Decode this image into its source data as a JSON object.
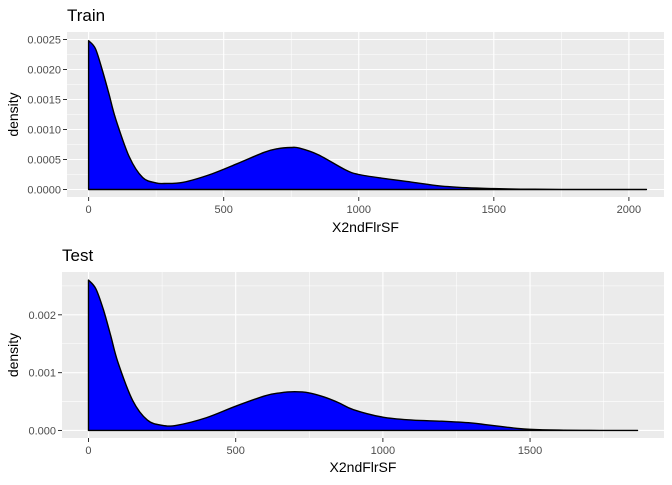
{
  "chart_data": [
    {
      "type": "area",
      "title": "Train",
      "xlabel": "X2ndFlrSF",
      "ylabel": "density",
      "xlim": [
        -80,
        2130
      ],
      "ylim": [
        -0.000125,
        0.002625
      ],
      "x_ticks": [
        0,
        500,
        1000,
        1500,
        2000
      ],
      "x_tick_labels": [
        "0",
        "500",
        "1000",
        "1500",
        "2000"
      ],
      "y_ticks": [
        0,
        0.0005,
        0.001,
        0.0015,
        0.002,
        0.0025
      ],
      "y_tick_labels": [
        "0.0000",
        "0.0005",
        "0.0010",
        "0.0015",
        "0.0020",
        "0.0025"
      ],
      "grid": true,
      "fill_color": "#0000ff",
      "line_color": "#000000",
      "panel_color": "#ebebeb",
      "series": [
        {
          "x": [
            0,
            25,
            50,
            75,
            100,
            150,
            200,
            250,
            280,
            350,
            450,
            550,
            650,
            700,
            750,
            780,
            850,
            950,
            1000,
            1100,
            1200,
            1300,
            1400,
            1500,
            1600,
            1700,
            1800,
            1900,
            2000,
            2065
          ],
          "y": [
            0.00248,
            0.00235,
            0.002,
            0.0016,
            0.00118,
            0.00055,
            0.0002,
            0.00011,
            0.0001,
            0.00012,
            0.00025,
            0.00043,
            0.00062,
            0.00068,
            0.0007,
            0.00069,
            0.00058,
            0.00033,
            0.00025,
            0.00018,
            0.00012,
            6e-05,
            3e-05,
            1.5e-05,
            6e-06,
            3e-06,
            1e-06,
            5e-07,
            2e-07,
            0
          ]
        }
      ]
    },
    {
      "type": "area",
      "title": "Test",
      "xlabel": "X2ndFlrSF",
      "ylabel": "density",
      "xlim": [
        -90,
        1955
      ],
      "ylim": [
        -0.00013,
        0.00274
      ],
      "x_ticks": [
        0,
        500,
        1000,
        1500
      ],
      "x_tick_labels": [
        "0",
        "500",
        "1000",
        "1500"
      ],
      "y_ticks": [
        0,
        0.001,
        0.002
      ],
      "y_tick_labels": [
        "0.000",
        "0.001",
        "0.002"
      ],
      "grid": true,
      "fill_color": "#0000ff",
      "line_color": "#000000",
      "panel_color": "#ebebeb",
      "series": [
        {
          "x": [
            0,
            25,
            50,
            75,
            100,
            150,
            200,
            250,
            300,
            400,
            500,
            600,
            650,
            700,
            750,
            800,
            850,
            900,
            1000,
            1100,
            1200,
            1300,
            1350,
            1400,
            1450,
            1500,
            1600,
            1700,
            1800,
            1865
          ],
          "y": [
            0.0026,
            0.00245,
            0.0021,
            0.00165,
            0.00118,
            0.00052,
            0.00018,
            9e-05,
            9e-05,
            0.00022,
            0.00042,
            0.0006,
            0.00065,
            0.00067,
            0.00065,
            0.00058,
            0.00048,
            0.00036,
            0.00023,
            0.00018,
            0.00016,
            0.00013,
            0.0001,
            7e-05,
            4e-05,
            2e-05,
            6e-06,
            2e-06,
            5e-07,
            0
          ]
        }
      ]
    }
  ]
}
